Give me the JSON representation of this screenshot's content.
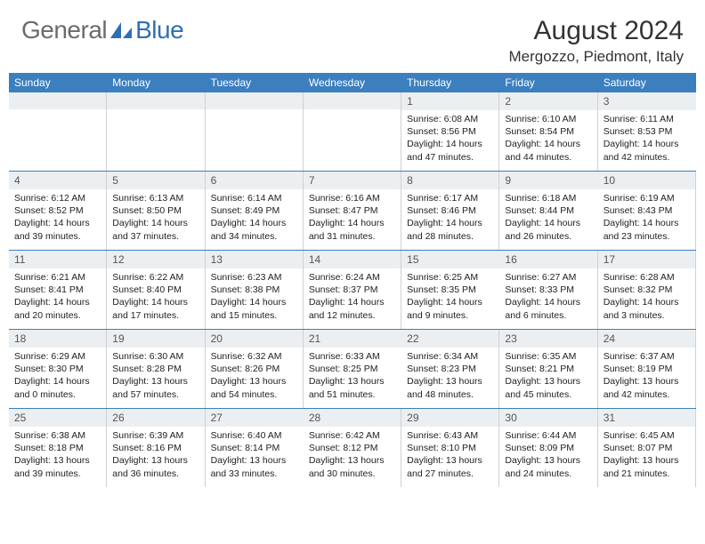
{
  "brand": {
    "part1": "General",
    "part2": "Blue"
  },
  "title": "August 2024",
  "location": "Mergozzo, Piedmont, Italy",
  "header_color": "#3b7fbf",
  "daynum_bg": "#eceff1",
  "border_color": "#d0d0d0",
  "weekdays": [
    "Sunday",
    "Monday",
    "Tuesday",
    "Wednesday",
    "Thursday",
    "Friday",
    "Saturday"
  ],
  "first_weekday_index": 4,
  "days": [
    {
      "n": 1,
      "sunrise": "6:08 AM",
      "sunset": "8:56 PM",
      "dl_h": 14,
      "dl_m": 47
    },
    {
      "n": 2,
      "sunrise": "6:10 AM",
      "sunset": "8:54 PM",
      "dl_h": 14,
      "dl_m": 44
    },
    {
      "n": 3,
      "sunrise": "6:11 AM",
      "sunset": "8:53 PM",
      "dl_h": 14,
      "dl_m": 42
    },
    {
      "n": 4,
      "sunrise": "6:12 AM",
      "sunset": "8:52 PM",
      "dl_h": 14,
      "dl_m": 39
    },
    {
      "n": 5,
      "sunrise": "6:13 AM",
      "sunset": "8:50 PM",
      "dl_h": 14,
      "dl_m": 37
    },
    {
      "n": 6,
      "sunrise": "6:14 AM",
      "sunset": "8:49 PM",
      "dl_h": 14,
      "dl_m": 34
    },
    {
      "n": 7,
      "sunrise": "6:16 AM",
      "sunset": "8:47 PM",
      "dl_h": 14,
      "dl_m": 31
    },
    {
      "n": 8,
      "sunrise": "6:17 AM",
      "sunset": "8:46 PM",
      "dl_h": 14,
      "dl_m": 28
    },
    {
      "n": 9,
      "sunrise": "6:18 AM",
      "sunset": "8:44 PM",
      "dl_h": 14,
      "dl_m": 26
    },
    {
      "n": 10,
      "sunrise": "6:19 AM",
      "sunset": "8:43 PM",
      "dl_h": 14,
      "dl_m": 23
    },
    {
      "n": 11,
      "sunrise": "6:21 AM",
      "sunset": "8:41 PM",
      "dl_h": 14,
      "dl_m": 20
    },
    {
      "n": 12,
      "sunrise": "6:22 AM",
      "sunset": "8:40 PM",
      "dl_h": 14,
      "dl_m": 17
    },
    {
      "n": 13,
      "sunrise": "6:23 AM",
      "sunset": "8:38 PM",
      "dl_h": 14,
      "dl_m": 15
    },
    {
      "n": 14,
      "sunrise": "6:24 AM",
      "sunset": "8:37 PM",
      "dl_h": 14,
      "dl_m": 12
    },
    {
      "n": 15,
      "sunrise": "6:25 AM",
      "sunset": "8:35 PM",
      "dl_h": 14,
      "dl_m": 9
    },
    {
      "n": 16,
      "sunrise": "6:27 AM",
      "sunset": "8:33 PM",
      "dl_h": 14,
      "dl_m": 6
    },
    {
      "n": 17,
      "sunrise": "6:28 AM",
      "sunset": "8:32 PM",
      "dl_h": 14,
      "dl_m": 3
    },
    {
      "n": 18,
      "sunrise": "6:29 AM",
      "sunset": "8:30 PM",
      "dl_h": 14,
      "dl_m": 0
    },
    {
      "n": 19,
      "sunrise": "6:30 AM",
      "sunset": "8:28 PM",
      "dl_h": 13,
      "dl_m": 57
    },
    {
      "n": 20,
      "sunrise": "6:32 AM",
      "sunset": "8:26 PM",
      "dl_h": 13,
      "dl_m": 54
    },
    {
      "n": 21,
      "sunrise": "6:33 AM",
      "sunset": "8:25 PM",
      "dl_h": 13,
      "dl_m": 51
    },
    {
      "n": 22,
      "sunrise": "6:34 AM",
      "sunset": "8:23 PM",
      "dl_h": 13,
      "dl_m": 48
    },
    {
      "n": 23,
      "sunrise": "6:35 AM",
      "sunset": "8:21 PM",
      "dl_h": 13,
      "dl_m": 45
    },
    {
      "n": 24,
      "sunrise": "6:37 AM",
      "sunset": "8:19 PM",
      "dl_h": 13,
      "dl_m": 42
    },
    {
      "n": 25,
      "sunrise": "6:38 AM",
      "sunset": "8:18 PM",
      "dl_h": 13,
      "dl_m": 39
    },
    {
      "n": 26,
      "sunrise": "6:39 AM",
      "sunset": "8:16 PM",
      "dl_h": 13,
      "dl_m": 36
    },
    {
      "n": 27,
      "sunrise": "6:40 AM",
      "sunset": "8:14 PM",
      "dl_h": 13,
      "dl_m": 33
    },
    {
      "n": 28,
      "sunrise": "6:42 AM",
      "sunset": "8:12 PM",
      "dl_h": 13,
      "dl_m": 30
    },
    {
      "n": 29,
      "sunrise": "6:43 AM",
      "sunset": "8:10 PM",
      "dl_h": 13,
      "dl_m": 27
    },
    {
      "n": 30,
      "sunrise": "6:44 AM",
      "sunset": "8:09 PM",
      "dl_h": 13,
      "dl_m": 24
    },
    {
      "n": 31,
      "sunrise": "6:45 AM",
      "sunset": "8:07 PM",
      "dl_h": 13,
      "dl_m": 21
    }
  ],
  "labels": {
    "sunrise": "Sunrise:",
    "sunset": "Sunset:",
    "daylight": "Daylight:",
    "hours_word": "hours",
    "and_word": "and",
    "minutes_word": "minutes."
  }
}
